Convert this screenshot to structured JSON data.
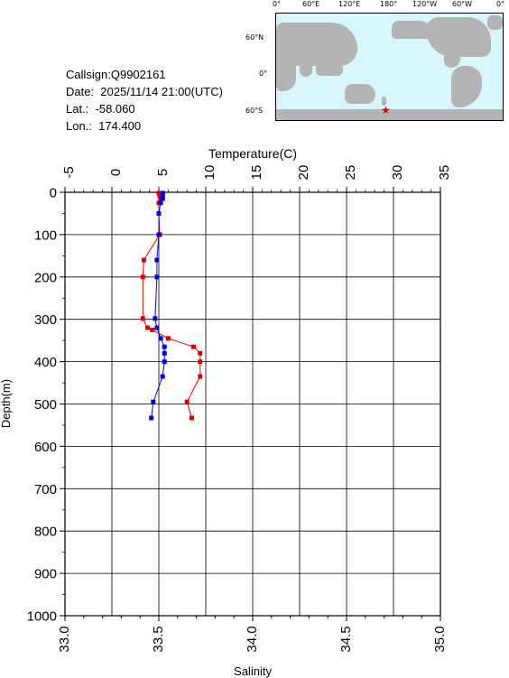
{
  "info": {
    "callsign": "Callsign:Q9902161",
    "date": "Date:  2025/11/14 21:00(UTC)",
    "lat": "Lat.:  -58.060",
    "lon": "Lon.:  174.400"
  },
  "map": {
    "lon_labels": [
      "0°",
      "60°E",
      "120°E",
      "180°",
      "120°W",
      "60°W",
      "0°"
    ],
    "lat_labels": [
      "60°N",
      "0°",
      "60°S"
    ],
    "marker": "star-icon",
    "ocean_color": "#d6f6fb",
    "land_color": "#b4b4b4",
    "marker_color": "#e00000"
  },
  "chart_data": {
    "type": "line",
    "xlabel_top": "Temperature(C)",
    "xlabel_bottom": "Salinity",
    "ylabel": "Depth(m)",
    "temperature_ticks": [
      "-5",
      "0",
      "5",
      "10",
      "15",
      "20",
      "25",
      "30",
      "35"
    ],
    "salinity_ticks": [
      "33.0",
      "33.5",
      "34.0",
      "34.5",
      "35.0"
    ],
    "depth_ticks": [
      "0",
      "100",
      "200",
      "300",
      "400",
      "500",
      "600",
      "700",
      "800",
      "900",
      "1000"
    ],
    "temperature_range": [
      -5,
      35
    ],
    "salinity_range": [
      33.0,
      35.0
    ],
    "depth_range": [
      0,
      1000
    ],
    "grid": true,
    "series": [
      {
        "axis": "temperature",
        "color": "#e00000",
        "points": [
          [
            5.0,
            2
          ],
          [
            5.2,
            5
          ],
          [
            5.1,
            10
          ],
          [
            5.2,
            15
          ],
          [
            5.0,
            25
          ],
          [
            5.0,
            50
          ],
          [
            5.1,
            100
          ],
          [
            3.4,
            160
          ],
          [
            3.3,
            200
          ],
          [
            3.3,
            298
          ],
          [
            3.8,
            320
          ],
          [
            4.3,
            325
          ],
          [
            6.0,
            345
          ],
          [
            8.7,
            365
          ],
          [
            9.4,
            380
          ],
          [
            9.4,
            400
          ],
          [
            9.4,
            435
          ],
          [
            8.0,
            495
          ],
          [
            8.5,
            533
          ]
        ]
      },
      {
        "axis": "salinity",
        "color": "#0000e0",
        "points": [
          [
            33.52,
            2
          ],
          [
            33.52,
            5
          ],
          [
            33.52,
            10
          ],
          [
            33.52,
            15
          ],
          [
            33.51,
            25
          ],
          [
            33.5,
            50
          ],
          [
            33.5,
            100
          ],
          [
            33.49,
            160
          ],
          [
            33.49,
            200
          ],
          [
            33.48,
            298
          ],
          [
            33.49,
            320
          ],
          [
            33.51,
            345
          ],
          [
            33.53,
            365
          ],
          [
            33.53,
            380
          ],
          [
            33.53,
            400
          ],
          [
            33.52,
            435
          ],
          [
            33.47,
            495
          ],
          [
            33.46,
            533
          ]
        ]
      }
    ]
  }
}
